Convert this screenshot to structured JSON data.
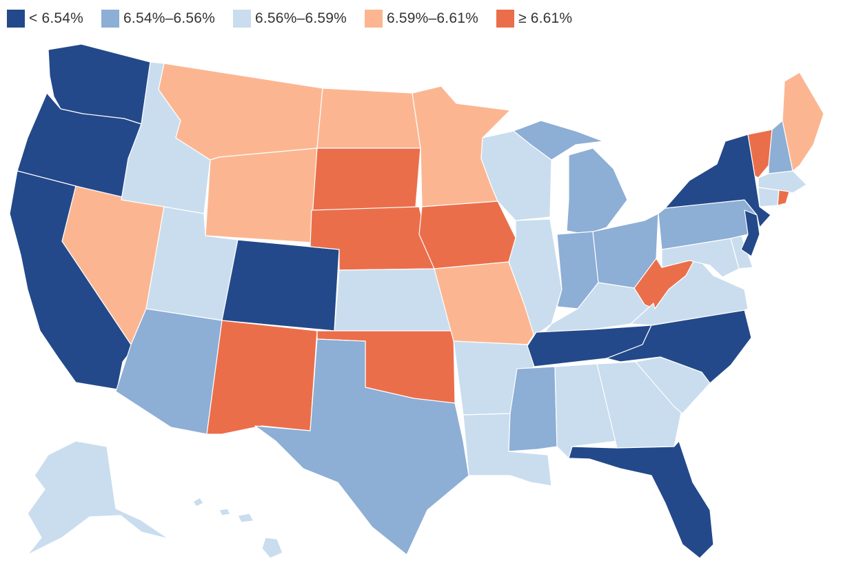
{
  "legend": {
    "items": [
      {
        "id": "c1",
        "label": "< 6.54%",
        "color": "#23498a"
      },
      {
        "id": "c2",
        "label": "6.54%–6.56%",
        "color": "#8daed5"
      },
      {
        "id": "c3",
        "label": "6.56%–6.59%",
        "color": "#c9ddee"
      },
      {
        "id": "c4",
        "label": "6.59%–6.61%",
        "color": "#fbb691"
      },
      {
        "id": "c5",
        "label": "≥ 6.61%",
        "color": "#eb6e4b"
      }
    ]
  },
  "states": {
    "WA": "c1",
    "OR": "c1",
    "CA": "c1",
    "CO": "c1",
    "NY": "c1",
    "NJ": "c1",
    "TN": "c1",
    "NC": "c1",
    "FL": "c1",
    "AZ": "c2",
    "TX": "c2",
    "MS": "c2",
    "MI": "c2",
    "IN": "c2",
    "OH": "c2",
    "PA": "c2",
    "NH": "c2",
    "ID": "c3",
    "UT": "c3",
    "KS": "c3",
    "WI": "c3",
    "IL": "c3",
    "KY": "c3",
    "VA": "c3",
    "MD": "c3",
    "DE": "c3",
    "AR": "c3",
    "LA": "c3",
    "AL": "c3",
    "GA": "c3",
    "SC": "c3",
    "CT": "c3",
    "MA": "c3",
    "AK": "c3",
    "HI": "c3",
    "MT": "c4",
    "WY": "c4",
    "NV": "c4",
    "ND": "c4",
    "MN": "c4",
    "MO": "c4",
    "ME": "c4",
    "SD": "c5",
    "NE": "c5",
    "IA": "c5",
    "NM": "c5",
    "OK": "c5",
    "WV": "c5",
    "VT": "c5",
    "RI": "c5"
  }
}
